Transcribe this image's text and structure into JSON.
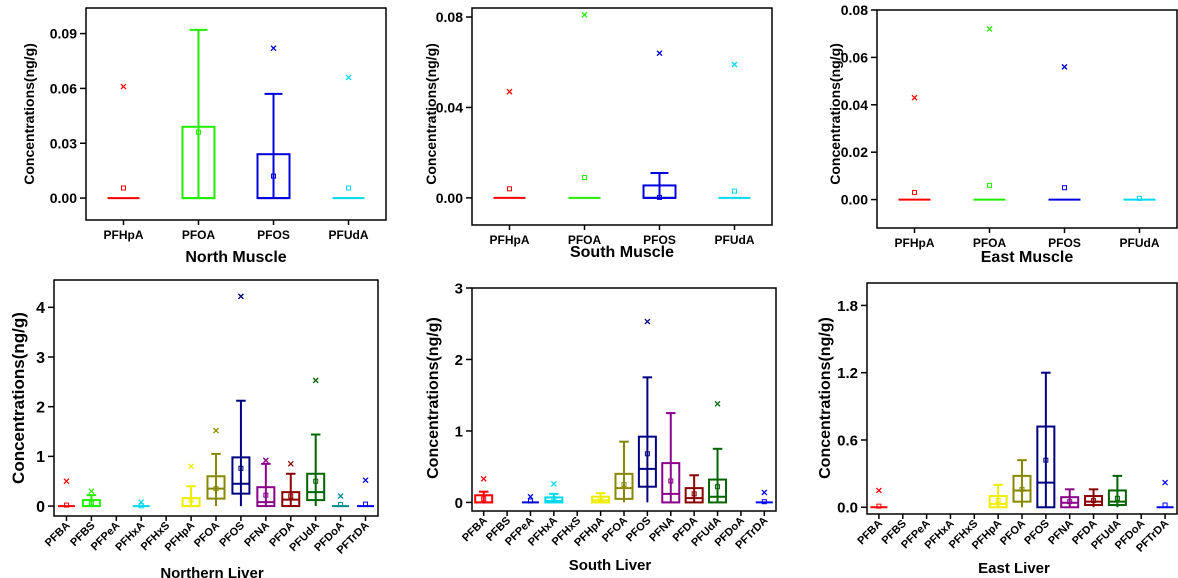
{
  "ylabel_text": "Concentrations(ng/g)",
  "chart_data": [
    {
      "type": "box",
      "title": "North Muscle",
      "ylabel": "Concentrations(ng/g)",
      "ylim": [
        -0.012,
        0.104
      ],
      "yticks": [
        0.0,
        0.03,
        0.06,
        0.09
      ],
      "ytick_labels": [
        "0.00",
        "0.03",
        "0.06",
        "0.09"
      ],
      "categories": [
        "PFHpA",
        "PFOA",
        "PFOS",
        "PFUdA"
      ],
      "colors": [
        "#ff0000",
        "#22ee00",
        "#0000dd",
        "#00d8ee"
      ],
      "boxes": [
        {
          "min": 0,
          "q1": 0,
          "median": 0,
          "q3": 0,
          "max": 0,
          "mean": 0.0055,
          "outliers": [
            0.061
          ]
        },
        {
          "min": 0,
          "q1": 0,
          "median": 0,
          "q3": 0.039,
          "max": 0.092,
          "mean": 0.036,
          "outliers": []
        },
        {
          "min": 0,
          "q1": 0,
          "median": 0,
          "q3": 0.024,
          "max": 0.057,
          "mean": 0.012,
          "outliers": [
            0.082
          ]
        },
        {
          "min": 0,
          "q1": 0,
          "median": 0,
          "q3": 0,
          "max": 0,
          "mean": 0.0055,
          "outliers": [
            0.066
          ]
        }
      ]
    },
    {
      "type": "box",
      "title": "South Muscle",
      "ylabel": "Concentrations(ng/g)",
      "ylim": [
        -0.012,
        0.084
      ],
      "yticks": [
        0.0,
        0.04,
        0.08
      ],
      "ytick_labels": [
        "0.00",
        "0.04",
        "0.08"
      ],
      "categories": [
        "PFHpA",
        "PFOA",
        "PFOS",
        "PFUdA"
      ],
      "colors": [
        "#ff0000",
        "#22ee00",
        "#0000dd",
        "#00d8ee"
      ],
      "boxes": [
        {
          "min": 0,
          "q1": 0,
          "median": 0,
          "q3": 0,
          "max": 0,
          "mean": 0.004,
          "outliers": [
            0.047
          ]
        },
        {
          "min": 0,
          "q1": 0,
          "median": 0,
          "q3": 0,
          "max": 0,
          "mean": 0.009,
          "outliers": [
            0.081
          ]
        },
        {
          "min": 0,
          "q1": 0,
          "median": 0,
          "q3": 0.0055,
          "max": 0.011,
          "mean": 0.0002,
          "outliers": [
            0.064
          ]
        },
        {
          "min": 0,
          "q1": 0,
          "median": 0,
          "q3": 0,
          "max": 0,
          "mean": 0.003,
          "outliers": [
            0.059
          ]
        }
      ]
    },
    {
      "type": "box",
      "title": "East Muscle",
      "ylabel": "Concentrations(ng/g)",
      "ylim": [
        -0.012,
        0.08
      ],
      "yticks": [
        0.0,
        0.02,
        0.04,
        0.06,
        0.08
      ],
      "ytick_labels": [
        "0.00",
        "0.02",
        "0.04",
        "0.06",
        "0.08"
      ],
      "categories": [
        "PFHpA",
        "PFOA",
        "PFOS",
        "PFUdA"
      ],
      "colors": [
        "#ff0000",
        "#22ee00",
        "#0000dd",
        "#00d8ee"
      ],
      "boxes": [
        {
          "min": 0,
          "q1": 0,
          "median": 0,
          "q3": 0,
          "max": 0,
          "mean": 0.003,
          "outliers": [
            0.043
          ]
        },
        {
          "min": 0,
          "q1": 0,
          "median": 0,
          "q3": 0,
          "max": 0,
          "mean": 0.006,
          "outliers": [
            0.072
          ]
        },
        {
          "min": 0,
          "q1": 0,
          "median": 0,
          "q3": 0,
          "max": 0,
          "mean": 0.005,
          "outliers": [
            0.056
          ]
        },
        {
          "min": 0,
          "q1": 0,
          "median": 0,
          "q3": 0,
          "max": 0,
          "mean": 0.0005,
          "outliers": []
        }
      ]
    },
    {
      "type": "box",
      "title": "Northern Liver",
      "ylabel": "Concentrations(ng/g)",
      "ylim": [
        -0.2,
        4.55
      ],
      "yticks": [
        0,
        1,
        2,
        3,
        4
      ],
      "ytick_labels": [
        "0",
        "1",
        "2",
        "3",
        "4"
      ],
      "categories": [
        "PFBA",
        "PFBS",
        "PFPeA",
        "PFHxA",
        "PFHxS",
        "PFHpA",
        "PFOA",
        "PFOS",
        "PFNA",
        "PFDA",
        "PFUdA",
        "PFDoA",
        "PFTrDA"
      ],
      "colors": [
        "#ff0000",
        "#22ee00",
        "#0000dd",
        "#00d8ee",
        "#cc00cc",
        "#eeee00",
        "#888800",
        "#000080",
        "#8b008b",
        "#8b0000",
        "#006400",
        "#008b8b",
        "#0000ff"
      ],
      "boxes": [
        {
          "min": 0,
          "q1": 0,
          "median": 0,
          "q3": 0,
          "max": 0,
          "mean": 0.02,
          "outliers": [
            0.5
          ]
        },
        {
          "min": 0,
          "q1": 0,
          "median": 0,
          "q3": 0.12,
          "max": 0.22,
          "mean": 0.06,
          "outliers": [
            0.3
          ]
        },
        null,
        {
          "min": 0,
          "q1": 0,
          "median": 0,
          "q3": 0,
          "max": 0,
          "mean": 0.005,
          "outliers": [
            0.08
          ]
        },
        null,
        {
          "min": 0,
          "q1": 0,
          "median": 0,
          "q3": 0.16,
          "max": 0.4,
          "mean": 0.12,
          "outliers": [
            0.8
          ]
        },
        {
          "min": 0,
          "q1": 0.15,
          "median": 0.35,
          "q3": 0.6,
          "max": 1.05,
          "mean": 0.35,
          "outliers": [
            1.52
          ]
        },
        {
          "min": 0,
          "q1": 0.25,
          "median": 0.45,
          "q3": 0.98,
          "max": 2.12,
          "mean": 0.76,
          "outliers": [
            4.22
          ]
        },
        {
          "min": 0,
          "q1": 0,
          "median": 0.08,
          "q3": 0.38,
          "max": 0.85,
          "mean": 0.22,
          "outliers": [
            0.92
          ]
        },
        {
          "min": 0,
          "q1": 0,
          "median": 0.13,
          "q3": 0.28,
          "max": 0.65,
          "mean": 0.2,
          "outliers": [
            0.85
          ]
        },
        {
          "min": 0,
          "q1": 0.12,
          "median": 0.28,
          "q3": 0.65,
          "max": 1.44,
          "mean": 0.5,
          "outliers": [
            2.53
          ]
        },
        {
          "min": 0,
          "q1": 0,
          "median": 0,
          "q3": 0,
          "max": 0,
          "mean": 0.03,
          "outliers": [
            0.2
          ]
        },
        {
          "min": 0,
          "q1": 0,
          "median": 0,
          "q3": 0,
          "max": 0,
          "mean": 0.04,
          "outliers": [
            0.52
          ]
        }
      ]
    },
    {
      "type": "box",
      "title": "South Liver",
      "ylabel": "Concentrations(ng/g)",
      "ylim": [
        -0.12,
        3.0
      ],
      "yticks": [
        0,
        1,
        2,
        3
      ],
      "ytick_labels": [
        "0",
        "1",
        "2",
        "3"
      ],
      "categories": [
        "PFBA",
        "PFBS",
        "PFPeA",
        "PFHxA",
        "PFHxS",
        "PFHpA",
        "PFOA",
        "PFOS",
        "PFNA",
        "PFDA",
        "PFUdA",
        "PFDoA",
        "PFTrDA"
      ],
      "colors": [
        "#ff0000",
        "#22ee00",
        "#0000dd",
        "#00d8ee",
        "#cc00cc",
        "#eeee00",
        "#888800",
        "#000080",
        "#8b008b",
        "#8b0000",
        "#006400",
        "#008b8b",
        "#0000ff"
      ],
      "boxes": [
        {
          "min": 0,
          "q1": 0,
          "median": 0,
          "q3": 0.1,
          "max": 0.15,
          "mean": 0.05,
          "outliers": [
            0.33
          ]
        },
        null,
        {
          "min": 0,
          "q1": 0,
          "median": 0,
          "q3": 0,
          "max": 0,
          "mean": 0.02,
          "outliers": [
            0.08
          ]
        },
        {
          "min": 0,
          "q1": 0,
          "median": 0.02,
          "q3": 0.07,
          "max": 0.12,
          "mean": 0.05,
          "outliers": [
            0.26
          ]
        },
        null,
        {
          "min": 0,
          "q1": 0,
          "median": 0.03,
          "q3": 0.08,
          "max": 0.13,
          "mean": 0.05,
          "outliers": []
        },
        {
          "min": 0,
          "q1": 0.05,
          "median": 0.2,
          "q3": 0.4,
          "max": 0.85,
          "mean": 0.25,
          "outliers": []
        },
        {
          "min": 0,
          "q1": 0.22,
          "median": 0.47,
          "q3": 0.92,
          "max": 1.75,
          "mean": 0.68,
          "outliers": [
            2.53
          ]
        },
        {
          "min": 0,
          "q1": 0,
          "median": 0.12,
          "q3": 0.55,
          "max": 1.25,
          "mean": 0.3,
          "outliers": []
        },
        {
          "min": 0,
          "q1": 0,
          "median": 0.06,
          "q3": 0.2,
          "max": 0.38,
          "mean": 0.12,
          "outliers": []
        },
        {
          "min": 0,
          "q1": 0,
          "median": 0.08,
          "q3": 0.32,
          "max": 0.75,
          "mean": 0.22,
          "outliers": [
            1.38
          ]
        },
        null,
        {
          "min": 0,
          "q1": 0,
          "median": 0,
          "q3": 0,
          "max": 0,
          "mean": 0.01,
          "outliers": [
            0.14
          ]
        }
      ]
    },
    {
      "type": "box",
      "title": "East Liver",
      "ylabel": "Concentrations(ng/g)",
      "ylim": [
        -0.06,
        2.0
      ],
      "yticks": [
        0.0,
        0.6,
        1.2,
        1.8
      ],
      "ytick_labels": [
        "0.0",
        "0.6",
        "1.2",
        "1.8"
      ],
      "categories": [
        "PFBA",
        "PFBS",
        "PFPeA",
        "PFHxA",
        "PFHxS",
        "PFHpA",
        "PFOA",
        "PFOS",
        "PFNA",
        "PFDA",
        "PFUdA",
        "PFDoA",
        "PFTrDA"
      ],
      "colors": [
        "#ff0000",
        "#22ee00",
        "#0000dd",
        "#00d8ee",
        "#cc00cc",
        "#eeee00",
        "#888800",
        "#000080",
        "#8b008b",
        "#8b0000",
        "#006400",
        "#008b8b",
        "#0000ff"
      ],
      "boxes": [
        {
          "min": 0,
          "q1": 0,
          "median": 0,
          "q3": 0,
          "max": 0,
          "mean": 0.01,
          "outliers": [
            0.15
          ]
        },
        null,
        null,
        null,
        null,
        {
          "min": 0,
          "q1": 0,
          "median": 0.03,
          "q3": 0.1,
          "max": 0.2,
          "mean": 0.06,
          "outliers": []
        },
        {
          "min": 0,
          "q1": 0.05,
          "median": 0.15,
          "q3": 0.28,
          "max": 0.42,
          "mean": 0.16,
          "outliers": []
        },
        {
          "min": 0,
          "q1": 0,
          "median": 0.22,
          "q3": 0.72,
          "max": 1.2,
          "mean": 0.42,
          "outliers": []
        },
        {
          "min": 0,
          "q1": 0,
          "median": 0.04,
          "q3": 0.09,
          "max": 0.16,
          "mean": 0.05,
          "outliers": []
        },
        {
          "min": 0,
          "q1": 0.02,
          "median": 0.05,
          "q3": 0.1,
          "max": 0.16,
          "mean": 0.06,
          "outliers": []
        },
        {
          "min": 0,
          "q1": 0.02,
          "median": 0.05,
          "q3": 0.15,
          "max": 0.28,
          "mean": 0.08,
          "outliers": []
        },
        null,
        {
          "min": 0,
          "q1": 0,
          "median": 0,
          "q3": 0,
          "max": 0,
          "mean": 0.02,
          "outliers": [
            0.22
          ]
        }
      ]
    }
  ]
}
